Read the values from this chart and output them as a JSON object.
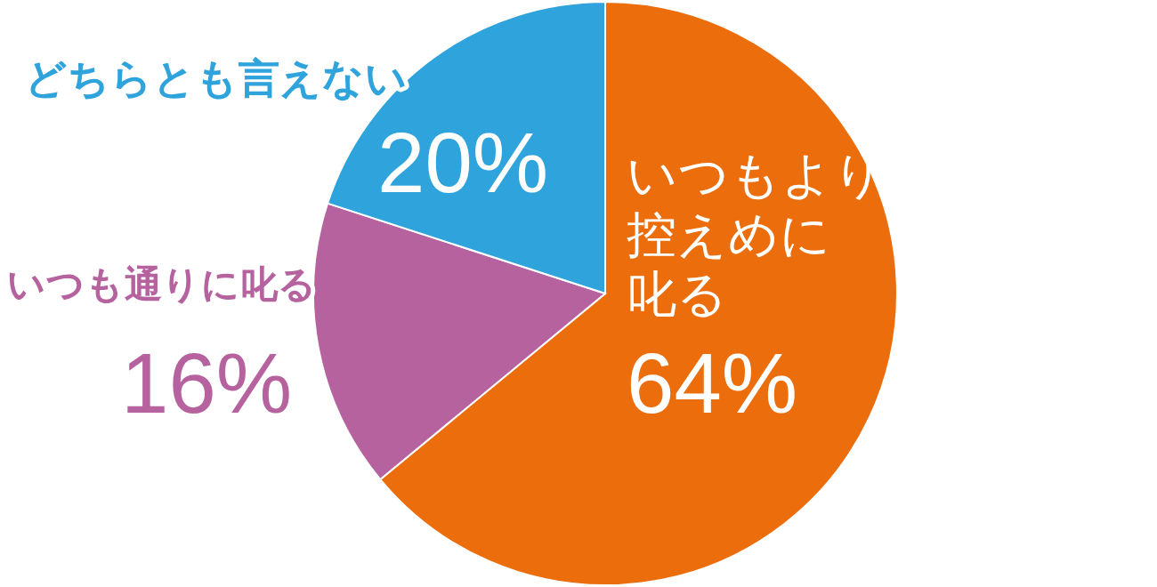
{
  "chart_data": {
    "type": "pie",
    "categories": [
      "いつもより控えめに叱る",
      "いつも通りに叱る",
      "どちらとも言えない"
    ],
    "values": [
      64,
      16,
      20
    ],
    "colors": [
      "#eb6d0c",
      "#b5629f",
      "#2fa3dc"
    ],
    "value_labels": [
      "64%",
      "16%",
      "20%"
    ]
  }
}
